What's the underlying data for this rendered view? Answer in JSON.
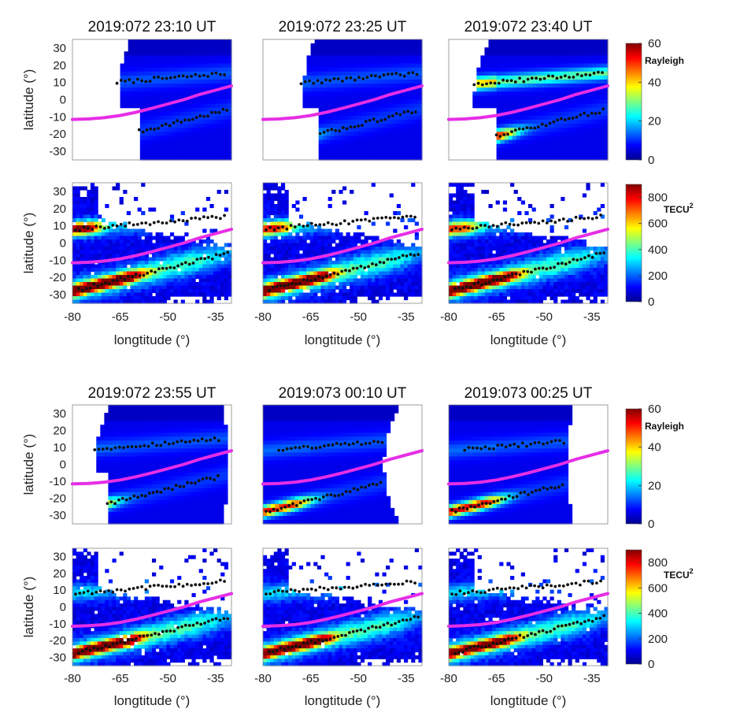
{
  "figure": {
    "colorbar_labels": {
      "glow": "Rayleigh",
      "tec_base": "TECU",
      "tec_sup": "2"
    },
    "colorbar_ticks": {
      "glow": [
        "60",
        "40",
        "20",
        "0"
      ],
      "tec": [
        "800",
        "600",
        "400",
        "200",
        "0"
      ]
    },
    "axis_labels": {
      "latitude": "latitude (°)",
      "longitude": "longtitude (°)"
    },
    "lat_ticks": [
      "30",
      "20",
      "10",
      "0",
      "-10",
      "-20",
      "-30"
    ],
    "lon_ticks": [
      "-80",
      "-65",
      "-50",
      "-35"
    ],
    "colors": {
      "equator_line": "#e62ee6",
      "crest_points": "#111111",
      "background": "#ffffff"
    }
  },
  "chart_data": [
    {
      "type": "heatmap",
      "group": "top",
      "variable": "Rayleigh",
      "times": [
        "2019:072 23:10 UT",
        "2019:072 23:25 UT",
        "2019:072 23:40 UT"
      ],
      "xlabel": "longtitude (°)",
      "ylabel": "latitude (°)",
      "xlim": [
        -80,
        -30
      ],
      "ylim": [
        -35,
        35
      ],
      "colorbar": [
        0,
        60
      ]
    },
    {
      "type": "heatmap",
      "group": "top",
      "variable": "TECU2",
      "times": [
        "2019:072 23:10 UT",
        "2019:072 23:25 UT",
        "2019:072 23:40 UT"
      ],
      "xlabel": "longtitude (°)",
      "ylabel": "latitude (°)",
      "xlim": [
        -80,
        -30
      ],
      "ylim": [
        -35,
        35
      ],
      "colorbar": [
        0,
        900
      ]
    },
    {
      "type": "heatmap",
      "group": "bottom",
      "variable": "Rayleigh",
      "times": [
        "2019:072 23:55 UT",
        "2019:073 00:10 UT",
        "2019:073 00:25 UT"
      ],
      "xlabel": "longtitude (°)",
      "ylabel": "latitude (°)",
      "xlim": [
        -80,
        -30
      ],
      "ylim": [
        -35,
        35
      ],
      "colorbar": [
        0,
        60
      ]
    },
    {
      "type": "heatmap",
      "group": "bottom",
      "variable": "TECU2",
      "times": [
        "2019:072 23:55 UT",
        "2019:073 00:10 UT",
        "2019:073 00:25 UT"
      ],
      "xlabel": "longtitude (°)",
      "ylabel": "latitude (°)",
      "xlim": [
        -80,
        -30
      ],
      "ylim": [
        -35,
        35
      ],
      "colorbar": [
        0,
        900
      ]
    },
    {
      "type": "line",
      "name": "magnetic equator",
      "x": [
        -80,
        -75,
        -70,
        -65,
        -60,
        -55,
        -50,
        -45,
        -40,
        -35,
        -30
      ],
      "y": [
        -11.5,
        -11.2,
        -10.5,
        -9.2,
        -7.3,
        -5,
        -2.5,
        0,
        3,
        5.5,
        8
      ]
    }
  ]
}
